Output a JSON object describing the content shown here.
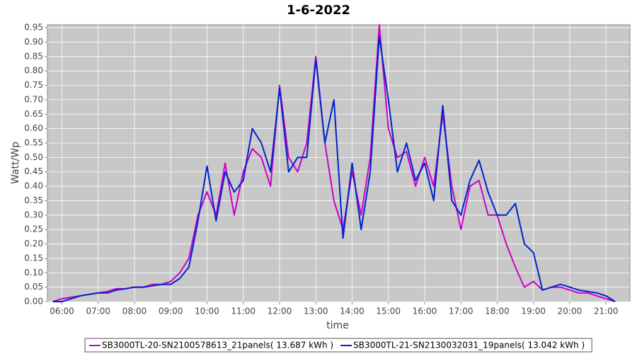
{
  "chart_data": {
    "type": "line",
    "title": "1-6-2022",
    "x_label": "time",
    "y_label": "Watt/Wp",
    "xlim": [
      5.6,
      21.66
    ],
    "ylim": [
      0,
      0.96
    ],
    "xticks": [
      {
        "value": 6,
        "label": "06:00"
      },
      {
        "value": 7,
        "label": "07:00"
      },
      {
        "value": 8,
        "label": "08:00"
      },
      {
        "value": 9,
        "label": "09:00"
      },
      {
        "value": 10,
        "label": "10:00"
      },
      {
        "value": 11,
        "label": "11:00"
      },
      {
        "value": 12,
        "label": "12:00"
      },
      {
        "value": 13,
        "label": "13:00"
      },
      {
        "value": 14,
        "label": "14:00"
      },
      {
        "value": 15,
        "label": "15:00"
      },
      {
        "value": 16,
        "label": "16:00"
      },
      {
        "value": 17,
        "label": "17:00"
      },
      {
        "value": 18,
        "label": "18:00"
      },
      {
        "value": 19,
        "label": "19:00"
      },
      {
        "value": 20,
        "label": "20:00"
      },
      {
        "value": 21,
        "label": "21:00"
      }
    ],
    "yticks": [
      {
        "value": 0,
        "label": "0.00"
      },
      {
        "value": 0.05,
        "label": "0.05"
      },
      {
        "value": 0.1,
        "label": "0.10"
      },
      {
        "value": 0.15,
        "label": "0.15"
      },
      {
        "value": 0.2,
        "label": "0.20"
      },
      {
        "value": 0.25,
        "label": "0.25"
      },
      {
        "value": 0.3,
        "label": "0.30"
      },
      {
        "value": 0.35,
        "label": "0.35"
      },
      {
        "value": 0.4,
        "label": "0.40"
      },
      {
        "value": 0.45,
        "label": "0.45"
      },
      {
        "value": 0.5,
        "label": "0.50"
      },
      {
        "value": 0.55,
        "label": "0.55"
      },
      {
        "value": 0.6,
        "label": "0.60"
      },
      {
        "value": 0.65,
        "label": "0.65"
      },
      {
        "value": 0.7,
        "label": "0.70"
      },
      {
        "value": 0.75,
        "label": "0.75"
      },
      {
        "value": 0.8,
        "label": "0.80"
      },
      {
        "value": 0.85,
        "label": "0.85"
      },
      {
        "value": 0.9,
        "label": "0.90"
      },
      {
        "value": 0.95,
        "label": "0.95"
      }
    ],
    "grid": true,
    "legend": "bottom",
    "x": [
      5.75,
      6,
      6.25,
      6.5,
      6.75,
      7,
      7.25,
      7.5,
      7.75,
      8,
      8.25,
      8.5,
      8.75,
      9,
      9.25,
      9.5,
      9.75,
      10,
      10.25,
      10.5,
      10.75,
      11,
      11.25,
      11.5,
      11.75,
      12,
      12.25,
      12.5,
      12.75,
      13,
      13.25,
      13.5,
      13.75,
      14,
      14.25,
      14.5,
      14.75,
      15,
      15.25,
      15.5,
      15.75,
      16,
      16.25,
      16.5,
      16.75,
      17,
      17.25,
      17.5,
      17.75,
      18,
      18.25,
      18.5,
      18.75,
      19,
      19.25,
      19.5,
      19.75,
      20,
      20.25,
      20.5,
      20.75,
      21,
      21.25
    ],
    "series": [
      {
        "name": "SB3000TL-20-SN2100578613_21panels( 13.687 kWh )",
        "color": "#cc00cc",
        "values": [
          0,
          0.01,
          0.015,
          0.02,
          0.025,
          0.03,
          0.035,
          0.045,
          0.045,
          0.05,
          0.05,
          0.06,
          0.06,
          0.07,
          0.1,
          0.15,
          0.3,
          0.38,
          0.3,
          0.48,
          0.3,
          0.45,
          0.53,
          0.5,
          0.4,
          0.75,
          0.5,
          0.45,
          0.55,
          0.85,
          0.55,
          0.35,
          0.25,
          0.45,
          0.3,
          0.5,
          0.96,
          0.6,
          0.5,
          0.52,
          0.4,
          0.5,
          0.4,
          0.65,
          0.4,
          0.25,
          0.4,
          0.42,
          0.3,
          0.3,
          0.2,
          0.12,
          0.05,
          0.07,
          0.04,
          0.05,
          0.05,
          0.04,
          0.03,
          0.03,
          0.02,
          0.01,
          0
        ]
      },
      {
        "name": "SB3000TL-21-SN2130032031_19panels( 13.042 kWh )",
        "color": "#0022cc",
        "values": [
          0,
          0,
          0.01,
          0.02,
          0.025,
          0.03,
          0.03,
          0.04,
          0.045,
          0.05,
          0.05,
          0.055,
          0.06,
          0.06,
          0.08,
          0.12,
          0.28,
          0.47,
          0.28,
          0.45,
          0.38,
          0.42,
          0.6,
          0.55,
          0.45,
          0.74,
          0.45,
          0.5,
          0.5,
          0.84,
          0.55,
          0.7,
          0.22,
          0.48,
          0.25,
          0.45,
          0.92,
          0.7,
          0.45,
          0.55,
          0.42,
          0.48,
          0.35,
          0.68,
          0.35,
          0.3,
          0.42,
          0.49,
          0.38,
          0.3,
          0.3,
          0.34,
          0.2,
          0.17,
          0.04,
          0.05,
          0.06,
          0.05,
          0.04,
          0.035,
          0.03,
          0.02,
          0
        ]
      }
    ]
  }
}
